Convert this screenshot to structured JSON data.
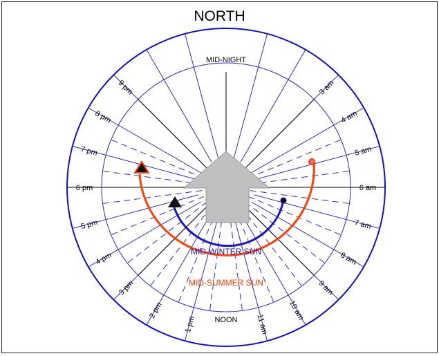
{
  "title": "NORTH",
  "labels": {
    "top": "MID-NIGHT",
    "bottom": "NOON",
    "winter_path": "MID-WINTER SUN",
    "summer_path": "MID-SUMMER SUN"
  },
  "hours": [
    {
      "text": "3 am",
      "angle_deg": 45
    },
    {
      "text": "4 am",
      "angle_deg": 60
    },
    {
      "text": "5 am",
      "angle_deg": 75
    },
    {
      "text": "6 am",
      "angle_deg": 90
    },
    {
      "text": "7 am",
      "angle_deg": 105
    },
    {
      "text": "8 am",
      "angle_deg": 120
    },
    {
      "text": "9 am",
      "angle_deg": 135
    },
    {
      "text": "10 am",
      "angle_deg": 150
    },
    {
      "text": "11 am",
      "angle_deg": 165
    },
    {
      "text": "1 pm",
      "angle_deg": 195
    },
    {
      "text": "2 pm",
      "angle_deg": 210
    },
    {
      "text": "3 pm",
      "angle_deg": 225
    },
    {
      "text": "4 pm",
      "angle_deg": 240
    },
    {
      "text": "5 pm",
      "angle_deg": 255
    },
    {
      "text": "6 pm",
      "angle_deg": 270
    },
    {
      "text": "7 pm",
      "angle_deg": 285
    },
    {
      "text": "8 pm",
      "angle_deg": 300
    },
    {
      "text": "9 pm",
      "angle_deg": 315
    }
  ],
  "colors": {
    "outer_ring": "#1010d0",
    "hour_lines": "#2a2ad8",
    "winter": "#1414cc",
    "summer": "#ff4000",
    "arrow": "#c0c0c0",
    "axis": "#000000"
  }
}
